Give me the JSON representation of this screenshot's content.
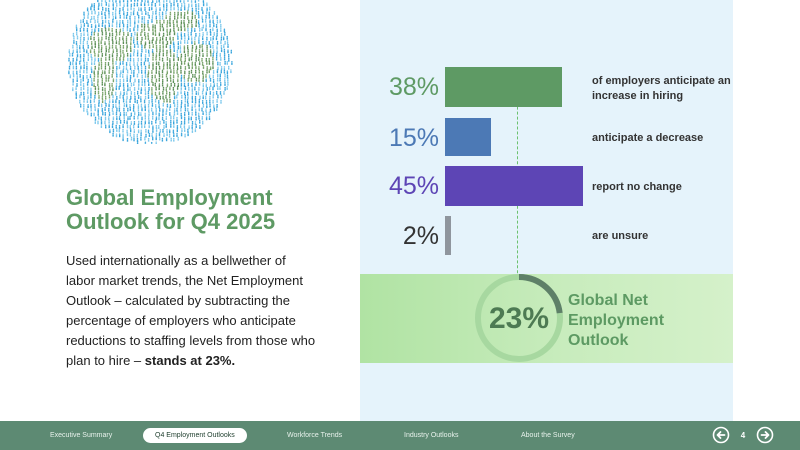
{
  "title": "Global Employment Outlook for Q4 2025",
  "body": {
    "text": "Used internationally as a bellwether of labor market trends, the Net Employment Outlook – calculated by subtracting the percentage of employers who anticipate reductions to staffing levels from those who plan to hire – ",
    "bold": "stands at 23%."
  },
  "stats": [
    {
      "value": 38,
      "label": "38%",
      "description": "of employers anticipate an increase in hiring",
      "color": "#5e9a64"
    },
    {
      "value": 15,
      "label": "15%",
      "description": "anticipate a decrease",
      "color": "#4c79b5"
    },
    {
      "value": 45,
      "label": "45%",
      "description": "report no change",
      "color": "#5d45b5"
    },
    {
      "value": 2,
      "label": "2%",
      "description": "are unsure",
      "color": "#8f959d"
    }
  ],
  "net": {
    "value": "23%",
    "label": "Global Net Employment Outlook",
    "progress": 0.23
  },
  "footer": {
    "nav": [
      "Executive Summary",
      "Q4 Employment Outlooks",
      "Workforce Trends",
      "Industry Outlooks",
      "About the Survey"
    ],
    "active_index": 1,
    "page": "4",
    "icons": {
      "prev": "arrow-left-icon",
      "next": "arrow-right-icon"
    }
  },
  "colors": {
    "brand_green": "#5e9a64",
    "footer": "#5d8a73",
    "panel": "#e5f3fb"
  }
}
